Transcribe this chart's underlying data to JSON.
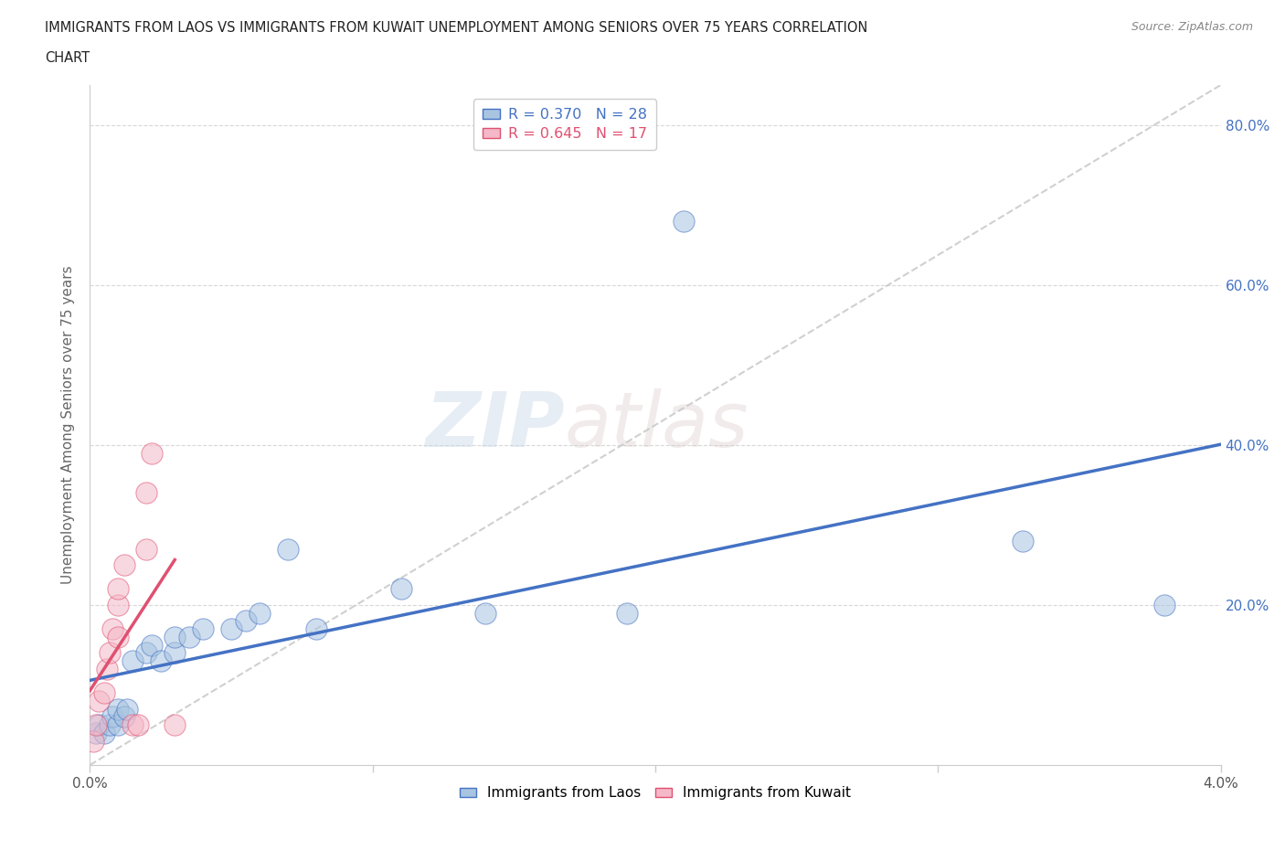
{
  "title_line1": "IMMIGRANTS FROM LAOS VS IMMIGRANTS FROM KUWAIT UNEMPLOYMENT AMONG SENIORS OVER 75 YEARS CORRELATION",
  "title_line2": "CHART",
  "source": "Source: ZipAtlas.com",
  "ylabel": "Unemployment Among Seniors over 75 years",
  "background_color": "#ffffff",
  "laos_color": "#a8c4e0",
  "laos_line_color": "#4472c4",
  "kuwait_color": "#f4b8c8",
  "kuwait_line_color": "#e05070",
  "diagonal_color": "#c8c8c8",
  "laos_R": 0.37,
  "laos_N": 28,
  "kuwait_R": 0.645,
  "kuwait_N": 17,
  "xlim": [
    0.0,
    0.04
  ],
  "ylim": [
    0.0,
    0.85
  ],
  "xtick_labels": [
    "0.0%",
    "",
    "",
    "",
    "4.0%"
  ],
  "xtick_values": [
    0.0,
    0.01,
    0.02,
    0.03,
    0.04
  ],
  "ytick_labels": [
    "20.0%",
    "40.0%",
    "60.0%",
    "80.0%"
  ],
  "ytick_values": [
    0.2,
    0.4,
    0.6,
    0.8
  ],
  "laos_x": [
    0.0002,
    0.0003,
    0.0005,
    0.0007,
    0.0008,
    0.001,
    0.001,
    0.0012,
    0.0013,
    0.0015,
    0.002,
    0.0022,
    0.0025,
    0.003,
    0.003,
    0.0035,
    0.004,
    0.005,
    0.0055,
    0.006,
    0.007,
    0.008,
    0.011,
    0.014,
    0.019,
    0.021,
    0.033,
    0.038
  ],
  "laos_y": [
    0.04,
    0.05,
    0.04,
    0.05,
    0.06,
    0.05,
    0.07,
    0.06,
    0.07,
    0.13,
    0.14,
    0.15,
    0.13,
    0.14,
    0.16,
    0.16,
    0.17,
    0.17,
    0.18,
    0.19,
    0.27,
    0.17,
    0.22,
    0.19,
    0.19,
    0.68,
    0.28,
    0.2
  ],
  "kuwait_x": [
    0.0001,
    0.0002,
    0.0003,
    0.0005,
    0.0006,
    0.0007,
    0.0008,
    0.001,
    0.001,
    0.001,
    0.0012,
    0.0015,
    0.0017,
    0.002,
    0.002,
    0.0022,
    0.003
  ],
  "kuwait_y": [
    0.03,
    0.05,
    0.08,
    0.09,
    0.12,
    0.14,
    0.17,
    0.16,
    0.2,
    0.22,
    0.25,
    0.05,
    0.05,
    0.27,
    0.34,
    0.39,
    0.05
  ],
  "marker_size": 280,
  "marker_alpha": 0.55,
  "legend_laos_label": "Immigrants from Laos",
  "legend_kuwait_label": "Immigrants from Kuwait",
  "watermark_zip": "ZIP",
  "watermark_atlas": "atlas"
}
